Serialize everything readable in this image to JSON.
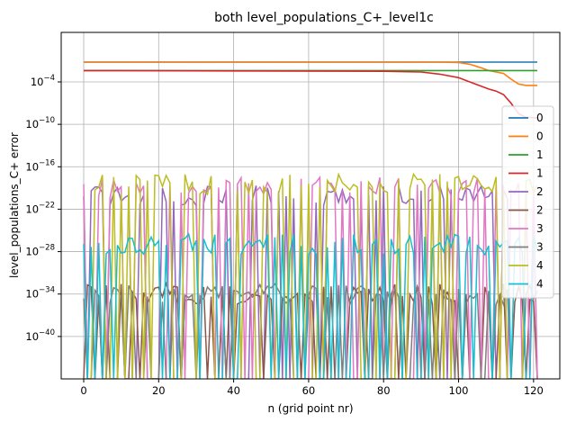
{
  "chart_data": {
    "type": "line",
    "title": "both level_populations_C+_level1c",
    "xlabel": "n (grid point nr)",
    "ylabel": "level_populations_C+ error",
    "y_scale": "log",
    "xlim": [
      -6,
      127
    ],
    "ylim_exp": [
      -46,
      3
    ],
    "x_ticks": [
      0,
      20,
      40,
      60,
      80,
      100,
      120
    ],
    "y_tick_exponents": [
      -40,
      -34,
      -28,
      -22,
      -16,
      -10,
      -4
    ],
    "y_tick_labels": [
      "10^-40",
      "10^-34",
      "10^-28",
      "10^-22",
      "10^-16",
      "10^-10",
      "10^-4"
    ],
    "grid": true,
    "legend_position": "right",
    "series": [
      {
        "name": "0",
        "color": "#1f77b4",
        "x": [
          0,
          121
        ],
        "log10_y": [
          -1.2,
          -1.2
        ]
      },
      {
        "name": "0",
        "color": "#ff7f0e",
        "x": [
          0,
          95,
          100,
          103,
          106,
          108,
          110,
          112,
          114,
          116,
          118,
          121
        ],
        "log10_y": [
          -1.2,
          -1.2,
          -1.25,
          -1.5,
          -2.0,
          -2.4,
          -2.6,
          -2.8,
          -3.6,
          -4.3,
          -4.5,
          -4.5
        ]
      },
      {
        "name": "1",
        "color": "#2ca02c",
        "x": [
          0,
          121
        ],
        "log10_y": [
          -2.4,
          -2.4
        ]
      },
      {
        "name": "1",
        "color": "#d62728",
        "x": [
          0,
          80,
          90,
          95,
          100,
          104,
          108,
          110,
          112,
          114,
          116,
          118,
          121
        ],
        "log10_y": [
          -2.4,
          -2.5,
          -2.6,
          -2.9,
          -3.4,
          -4.2,
          -5.0,
          -5.3,
          -5.8,
          -7.0,
          -8.5,
          -9.0,
          -9.1
        ]
      }
    ],
    "noise_series": [
      {
        "name": "2",
        "color": "#9467bd",
        "level": -20
      },
      {
        "name": "2",
        "color": "#8c564b",
        "level": -34
      },
      {
        "name": "3",
        "color": "#e377c2",
        "level": -19
      },
      {
        "name": "3",
        "color": "#7f7f7f",
        "level": -34
      },
      {
        "name": "4",
        "color": "#bcbd22",
        "level": -18.5
      },
      {
        "name": "4",
        "color": "#17becf",
        "level": -27
      }
    ],
    "floor_exp": -46
  }
}
